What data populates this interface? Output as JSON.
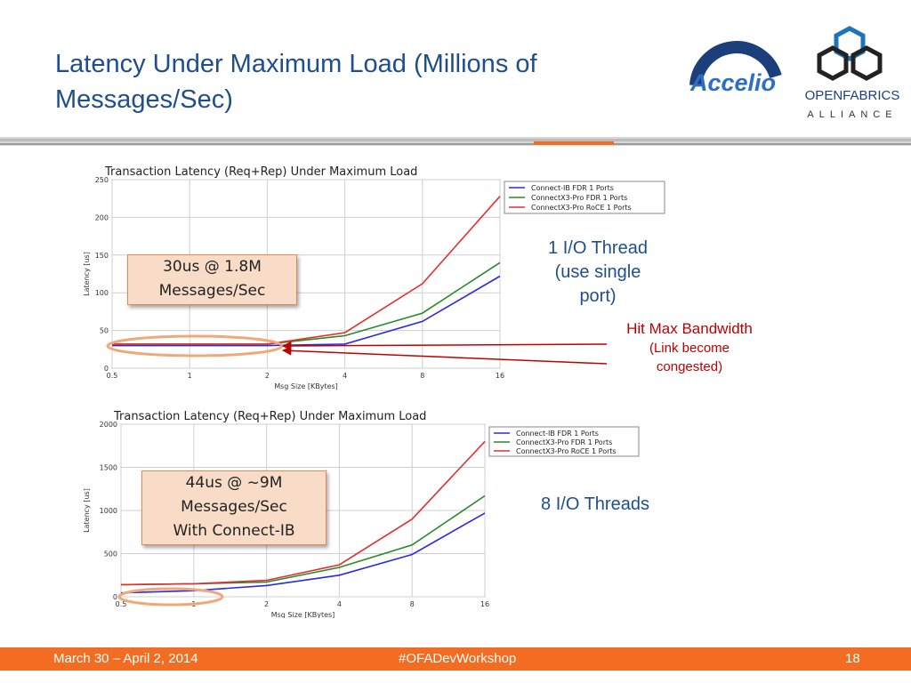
{
  "slide": {
    "title": "Latency Under Maximum Load (Millions of Messages/Sec)",
    "logos": {
      "accelio": "Accelio",
      "ofa_line1": "OPENFABRICS",
      "ofa_line2": "ALLIANCE"
    },
    "callouts": {
      "top": [
        "30us @ 1.8M",
        "Messages/Sec"
      ],
      "bottom": [
        "44us @ ~9M",
        "Messages/Sec",
        "With Connect-IB"
      ]
    },
    "notes": {
      "thread1_a": "1 I/O Thread",
      "thread1_b": "(use single",
      "thread1_c": "port)",
      "maxbw_a": "Hit Max Bandwidth",
      "maxbw_b": "(Link become",
      "maxbw_c": "congested)",
      "threads8": "8 I/O Threads"
    },
    "footer": {
      "date": "March 30 – April 2, 2014",
      "hashtag": "#OFADevWorkshop",
      "page": "18"
    },
    "colors": {
      "title": "#1f4e8c",
      "footer": "#f26d21",
      "callout_fill": "#f9dcc8",
      "ellipse": "#f0a878",
      "arrow": "#c00000",
      "series_blue": "#2a2ae6",
      "series_green": "#2a8a2a",
      "series_red": "#e23030"
    }
  },
  "chart_data": [
    {
      "type": "line",
      "title": "Transaction Latency (Req+Rep) Under Maximum Load",
      "xlabel": "Msg Size [KBytes]",
      "ylabel": "Latency [us]",
      "x": [
        0.5,
        1,
        2,
        4,
        8,
        16
      ],
      "x_tick_labels": [
        "0.5",
        "1",
        "2",
        "4",
        "8",
        "16"
      ],
      "x_scale": "log2",
      "ylim": [
        0,
        250
      ],
      "yticks": [
        0,
        50,
        100,
        150,
        200,
        250
      ],
      "legend": "top-right",
      "series": [
        {
          "name": "Connect-IB FDR 1 Ports",
          "color": "#2a2ae6",
          "values": [
            30,
            30,
            30,
            32,
            62,
            122
          ]
        },
        {
          "name": "ConnectX3-Pro FDR 1 Ports",
          "color": "#2a8a2a",
          "values": [
            32,
            32,
            32,
            43,
            73,
            140
          ]
        },
        {
          "name": "ConnectX3-Pro RoCE 1 Ports",
          "color": "#e23030",
          "values": [
            32,
            32,
            32,
            47,
            112,
            228
          ]
        }
      ]
    },
    {
      "type": "line",
      "title": "Transaction Latency (Req+Rep) Under Maximum Load",
      "xlabel": "Msg Size [KBytes]",
      "ylabel": "Latency [us]",
      "x": [
        0.5,
        1,
        2,
        4,
        8,
        16
      ],
      "x_tick_labels": [
        "0.5",
        "1",
        "2",
        "4",
        "8",
        "16"
      ],
      "x_scale": "log2",
      "ylim": [
        0,
        2000
      ],
      "yticks": [
        0,
        500,
        1000,
        1500,
        2000
      ],
      "legend": "top-right",
      "series": [
        {
          "name": "Connect-IB FDR 1 Ports",
          "color": "#2a2ae6",
          "values": [
            44,
            70,
            130,
            250,
            490,
            970
          ]
        },
        {
          "name": "ConnectX3-Pro FDR 1 Ports",
          "color": "#2a8a2a",
          "values": [
            140,
            150,
            170,
            340,
            600,
            1170
          ]
        },
        {
          "name": "ConnectX3-Pro RoCE 1 Ports",
          "color": "#e23030",
          "values": [
            140,
            150,
            190,
            370,
            900,
            1800
          ]
        }
      ]
    }
  ]
}
